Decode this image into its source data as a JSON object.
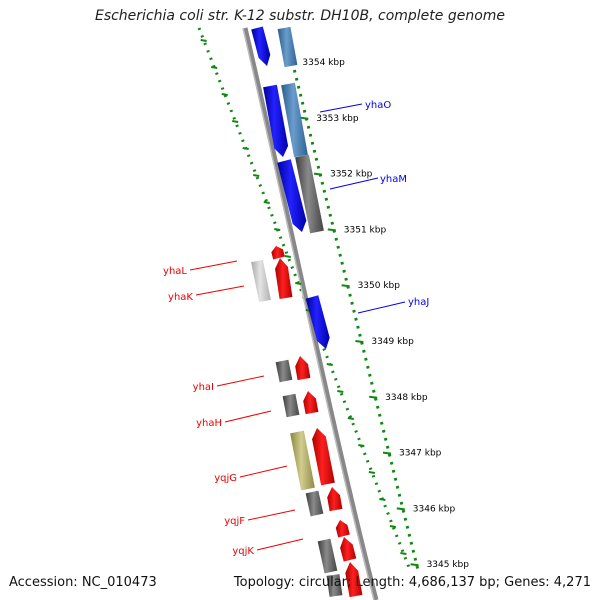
{
  "title": "Escherichia coli str. K-12 substr. DH10B, complete genome",
  "footer": {
    "accession": "Accession: NC_010473",
    "stats": "Topology: circular; Length: 4,686,137 bp; Genes: 4,271"
  },
  "colors": {
    "forward_cds": "#0000ee",
    "forward_alt": "#4a7fb5",
    "reverse_cds": "#ee0000",
    "gray_feature": "#666666",
    "light_feature": "#c8c8c8",
    "olive_feature": "#b5b06a",
    "tick_green": "#118811",
    "backbone": "#888888"
  },
  "ticks": [
    {
      "label": "3354 kbp"
    },
    {
      "label": "3353 kbp"
    },
    {
      "label": "3352 kbp"
    },
    {
      "label": "3351 kbp"
    },
    {
      "label": "3350 kbp"
    },
    {
      "label": "3349 kbp"
    },
    {
      "label": "3348 kbp"
    },
    {
      "label": "3347 kbp"
    },
    {
      "label": "3346 kbp"
    },
    {
      "label": "3345 kbp"
    }
  ],
  "genes": [
    {
      "name": "yhaO",
      "strand": "forward"
    },
    {
      "name": "yhaM",
      "strand": "forward"
    },
    {
      "name": "yhaJ",
      "strand": "forward"
    },
    {
      "name": "yhaL",
      "strand": "reverse"
    },
    {
      "name": "yhaK",
      "strand": "reverse"
    },
    {
      "name": "yhaI",
      "strand": "reverse"
    },
    {
      "name": "yhaH",
      "strand": "reverse"
    },
    {
      "name": "yqjG",
      "strand": "reverse"
    },
    {
      "name": "yqjF",
      "strand": "reverse"
    },
    {
      "name": "yqjK",
      "strand": "reverse"
    }
  ]
}
